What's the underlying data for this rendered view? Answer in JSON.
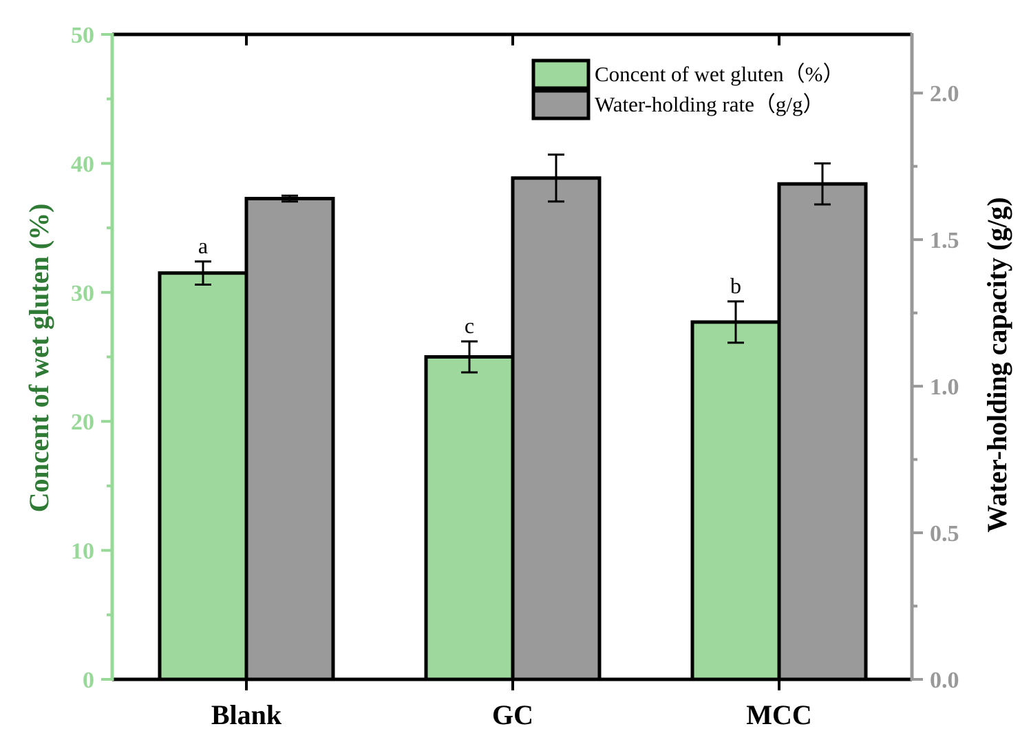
{
  "chart_data": {
    "type": "bar",
    "title": "",
    "categories": [
      "Blank",
      "GC",
      "MCC"
    ],
    "xlabel": "",
    "series": [
      {
        "name": "Concent of wet gluten（%）",
        "axis": "left",
        "color": "#9fd89c",
        "values": [
          31.5,
          25.0,
          27.7
        ],
        "errors": [
          0.9,
          1.2,
          1.6
        ],
        "significance": [
          "a",
          "c",
          "b"
        ]
      },
      {
        "name": "Water-holding rate（g/g）",
        "axis": "right",
        "color": "#9a9a9a",
        "values": [
          1.64,
          1.71,
          1.69
        ],
        "errors": [
          0.01,
          0.08,
          0.07
        ]
      }
    ],
    "y_left": {
      "label": "Concent of wet gluten (%)",
      "ylim": [
        0,
        50
      ],
      "ticks": [
        "0",
        "10",
        "20",
        "30",
        "40",
        "50"
      ],
      "color": "#98d898"
    },
    "y_right": {
      "label": "Water-holding capacity (g/g)",
      "ylim": [
        0,
        2.2
      ],
      "ticks": [
        "0.0",
        "0.5",
        "1.0",
        "1.5",
        "2.0"
      ],
      "color": "#999999"
    },
    "legend": "top-right",
    "grid": false
  }
}
